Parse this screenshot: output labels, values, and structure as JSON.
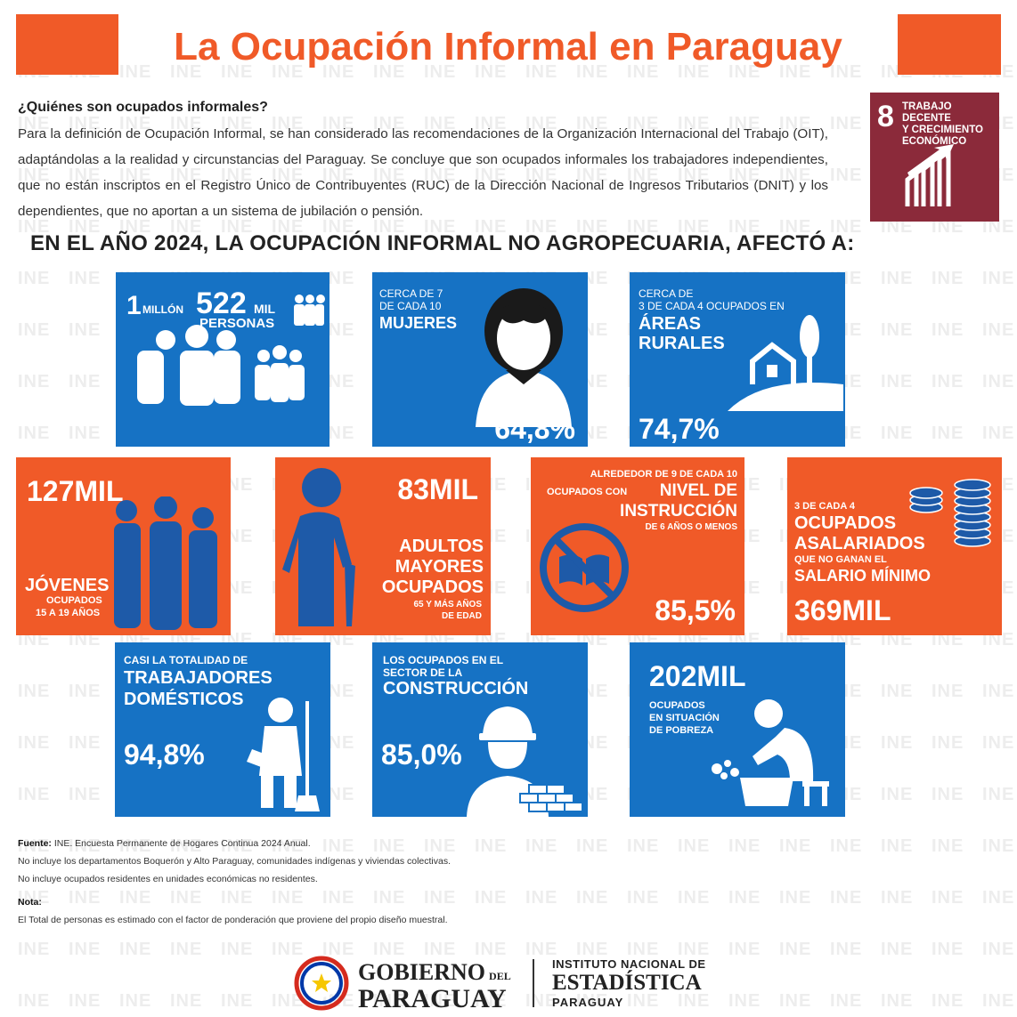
{
  "title": "La Ocupación Informal en Paraguay",
  "intro": {
    "question": "¿Quiénes son ocupados informales?",
    "paragraph": "Para la definición de Ocupación Informal, se han considerado las recomendaciones de la Organización Internacional del Trabajo (OIT), adaptándolas a la realidad y circunstancias del Paraguay. Se concluye que son ocupados informales los trabajadores independientes, que no están inscriptos en el Registro Único de Contribuyentes (RUC) de la Dirección Nacional de Ingresos Tributarios (DNIT) y los dependientes, que no aportan a un sistema de jubilación o pensión."
  },
  "sdg": {
    "number": "8",
    "label_1": "TRABAJO DECENTE",
    "label_2": "Y CRECIMIENTO",
    "label_3": "ECONÓMICO",
    "color": "#8b2a3a",
    "icon": "growth-chart-icon"
  },
  "subtitle": "EN EL AÑO 2024, LA OCUPACIÓN INFORMAL NO AGROPECUARIA, AFECTÓ A:",
  "watermark": "INE",
  "colors": {
    "blue": "#1672c4",
    "orange": "#f05a28"
  },
  "tiles": {
    "personas": {
      "num1": "1",
      "unit1": "MILLÓN",
      "num2": "522",
      "unit2": "MIL",
      "label": "PERSONAS",
      "icon": "people-group-icon"
    },
    "mujeres": {
      "pre1": "CERCA DE 7",
      "pre2": "DE CADA 10",
      "label": "MUJERES",
      "value": "64,8%",
      "icon": "woman-icon"
    },
    "rurales": {
      "pre1": "CERCA DE",
      "pre2": "3 DE CADA 4 OCUPADOS EN",
      "label1": "ÁREAS",
      "label2": "RURALES",
      "value": "74,7%",
      "icon": "rural-house-icon"
    },
    "jovenes": {
      "value": "127MIL",
      "label": "JÓVENES",
      "sub1": "OCUPADOS",
      "sub2": "15 A 19 AÑOS",
      "icon": "youth-icon"
    },
    "adultos": {
      "value": "83MIL",
      "label1": "ADULTOS",
      "label2": "MAYORES",
      "label3": "OCUPADOS",
      "sub1": "65 Y MÁS AÑOS",
      "sub2": "DE EDAD",
      "icon": "elderly-icon"
    },
    "instruccion": {
      "pre": "ALREDEDOR DE 9 DE CADA 10",
      "pre2": "OCUPADOS CON",
      "label1": "NIVEL DE",
      "label2": "INSTRUCCIÓN",
      "sub": "DE 6 AÑOS O MENOS",
      "value": "85,5%",
      "icon": "no-book-icon"
    },
    "asalariados": {
      "pre": "3 DE CADA 4",
      "label1": "OCUPADOS",
      "label2": "ASALARIADOS",
      "sub": "QUE NO GANAN EL",
      "label3": "SALARIO MÍNIMO",
      "value": "369MIL",
      "icon": "coins-icon"
    },
    "domesticos": {
      "pre": "CASI LA TOTALIDAD DE",
      "label1": "TRABAJADORES",
      "label2": "DOMÉSTICOS",
      "value": "94,8%",
      "icon": "cleaner-icon"
    },
    "construccion": {
      "pre1": "LOS OCUPADOS EN EL",
      "pre2": "SECTOR DE LA",
      "label": "CONSTRUCCIÓN",
      "value": "85,0%",
      "icon": "worker-icon"
    },
    "pobreza": {
      "value": "202MIL",
      "sub1": "OCUPADOS",
      "sub2": "EN SITUACIÓN",
      "sub3": "DE POBREZA",
      "icon": "washing-icon"
    }
  },
  "footer": {
    "source_label": "Fuente:",
    "source_text": "INE. Encuesta Permanente de Hogares Continua 2024 Anual.",
    "note_1": "No incluye los departamentos Boquerón y Alto Paraguay, comunidades indígenas y viviendas colectivas.",
    "note_2": "No incluye ocupados residentes en unidades económicas no residentes.",
    "nota_label": "Nota:",
    "nota_text": "El Total de personas es estimado con el factor de ponderación que proviene del propio diseño muestral."
  },
  "logos": {
    "gov_1": "GOBIERNO",
    "gov_del": "DEL",
    "gov_2": "PARAGUAY",
    "ine_1": "INSTITUTO NACIONAL DE",
    "ine_2": "ESTADÍSTICA",
    "ine_3": "PARAGUAY"
  }
}
